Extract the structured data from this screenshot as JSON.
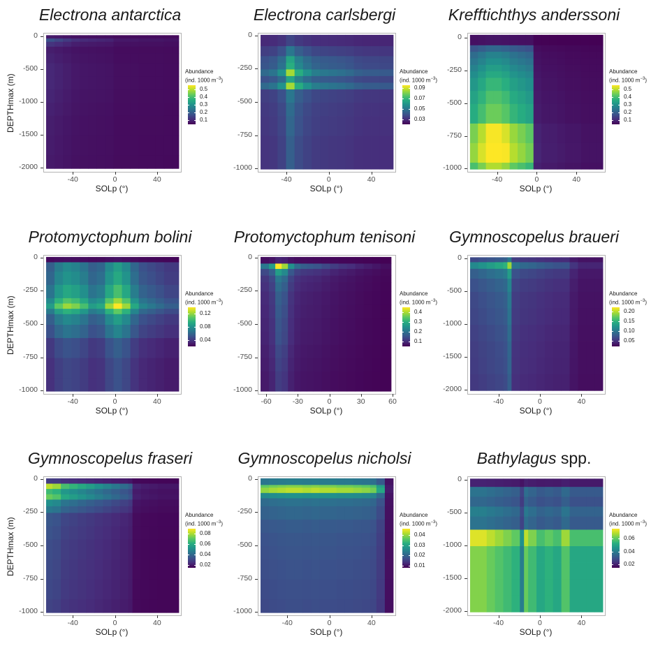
{
  "colors": {
    "viridis": [
      "#440154",
      "#472d7b",
      "#3b528b",
      "#2c728e",
      "#21918c",
      "#28ae80",
      "#5ec962",
      "#addc30",
      "#fde725"
    ],
    "frame": "#b3b3b3"
  },
  "labels": {
    "xlabel": "SOLp (°)",
    "ylabel": "DEPTHmax (m)",
    "legend_line1": "Abundance",
    "legend_line2_prefix": "(ind. 1000 m",
    "legend_sup": "−3",
    "legend_line2_suffix": ")"
  },
  "chart_data": [
    {
      "type": "heatmap",
      "title": "Electrona antarctica",
      "xlabel": "SOLp (°)",
      "ylabel": "DEPTHmax (m)",
      "x_ticks": [
        -40,
        0,
        40
      ],
      "y_ticks": [
        0,
        -500,
        -1000,
        -1500,
        -2000
      ],
      "xlim": [
        -68,
        62
      ],
      "ylim": [
        -2050,
        50
      ],
      "x_extent": [
        -66,
        60
      ],
      "y_extent": [
        -2000,
        25
      ],
      "legend_title": "Abundance (ind. 1000 m−3)",
      "legend_ticks": [
        0.1,
        0.2,
        0.3,
        0.4,
        0.5
      ],
      "legend_range": [
        0.05,
        0.55
      ],
      "x_bins": [
        -66,
        -58,
        -50,
        -42,
        -34,
        -26,
        -18,
        -10,
        -2,
        6,
        14,
        22,
        30,
        38,
        46,
        54,
        60
      ],
      "y_bins": [
        25,
        -25,
        -75,
        -150,
        -250,
        -400,
        -600,
        -800,
        -1000,
        -1200,
        -1500,
        -1800,
        -2000
      ],
      "x_weights": [
        0.3,
        0.25,
        0.2,
        0.15,
        0.13,
        0.12,
        0.11,
        0.1,
        0.06,
        0.06,
        0.06,
        0.05,
        0.05,
        0.05,
        0.04,
        0.04
      ],
      "y_weights": [
        0.1,
        0.45,
        0.25,
        0.12,
        0.15,
        0.18,
        0.18,
        0.16,
        0.14,
        0.12,
        0.11,
        0.1
      ],
      "base": 0.06,
      "scale": 0.85
    },
    {
      "type": "heatmap",
      "title": "Electrona carlsbergi",
      "xlabel": "SOLp (°)",
      "ylabel": "",
      "x_ticks": [
        -40,
        0,
        40
      ],
      "y_ticks": [
        0,
        -250,
        -500,
        -750,
        -1000
      ],
      "xlim": [
        -67,
        62
      ],
      "ylim": [
        -1020,
        20
      ],
      "x_extent": [
        -65,
        60
      ],
      "y_extent": [
        -1000,
        10
      ],
      "legend_title": "Abundance (ind. 1000 m−3)",
      "legend_ticks": [
        0.03,
        0.05,
        0.07,
        0.09
      ],
      "legend_range": [
        0.02,
        0.095
      ],
      "x_bins": [
        -65,
        -57,
        -49,
        -41,
        -33,
        -25,
        -17,
        -9,
        -1,
        7,
        15,
        23,
        31,
        39,
        47,
        55,
        60
      ],
      "y_bins": [
        10,
        -75,
        -150,
        -200,
        -250,
        -300,
        -350,
        -400,
        -500,
        -600,
        -750,
        -900,
        -1000
      ],
      "x_weights": [
        0.35,
        0.4,
        0.55,
        1.0,
        0.7,
        0.55,
        0.45,
        0.42,
        0.4,
        0.38,
        0.35,
        0.3,
        0.28,
        0.28,
        0.27,
        0.27
      ],
      "y_weights": [
        0.15,
        0.35,
        0.55,
        0.6,
        0.85,
        0.55,
        0.85,
        0.35,
        0.3,
        0.28,
        0.25,
        0.25
      ],
      "base": 0.025,
      "scale": 0.07
    },
    {
      "type": "heatmap",
      "title": "Krefftichthys anderssoni",
      "xlabel": "SOLp (°)",
      "ylabel": "",
      "x_ticks": [
        -40,
        0,
        40
      ],
      "y_ticks": [
        0,
        -250,
        -500,
        -750,
        -1000
      ],
      "xlim": [
        -70,
        68
      ],
      "ylim": [
        -1020,
        40
      ],
      "x_extent": [
        -68,
        66
      ],
      "y_extent": [
        -1000,
        30
      ],
      "legend_title": "Abundance (ind. 1000 m−3)",
      "legend_ticks": [
        0.1,
        0.2,
        0.3,
        0.4,
        0.5
      ],
      "legend_range": [
        0.05,
        0.55
      ],
      "x_bins": [
        -68,
        -60,
        -52,
        -44,
        -36,
        -28,
        -20,
        -12,
        -4,
        4,
        12,
        20,
        28,
        36,
        44,
        52,
        60,
        66
      ],
      "y_bins": [
        30,
        -50,
        -100,
        -150,
        -200,
        -250,
        -300,
        -400,
        -500,
        -650,
        -800,
        -950,
        -1000
      ],
      "x_weights": [
        0.8,
        0.9,
        1.0,
        1.0,
        0.95,
        0.85,
        0.8,
        0.75,
        0.1,
        0.08,
        0.08,
        0.07,
        0.06,
        0.06,
        0.05,
        0.05,
        0.05
      ],
      "y_weights": [
        0.05,
        0.3,
        0.4,
        0.45,
        0.5,
        0.55,
        0.6,
        0.65,
        0.7,
        0.9,
        0.95,
        0.8
      ],
      "base": 0.05,
      "scale": 0.55
    },
    {
      "type": "heatmap",
      "title": "Protomyctophum bolini",
      "xlabel": "SOLp (°)",
      "ylabel": "DEPTHmax (m)",
      "x_ticks": [
        -40,
        0,
        40
      ],
      "y_ticks": [
        0,
        -250,
        -500,
        -750,
        -1000
      ],
      "xlim": [
        -68,
        62
      ],
      "ylim": [
        -1020,
        20
      ],
      "x_extent": [
        -66,
        60
      ],
      "y_extent": [
        -1000,
        10
      ],
      "legend_title": "Abundance (ind. 1000 m−3)",
      "legend_ticks": [
        0.04,
        0.08,
        0.12
      ],
      "legend_range": [
        0.02,
        0.14
      ],
      "x_bins": [
        -66,
        -58,
        -50,
        -42,
        -34,
        -26,
        -18,
        -10,
        -2,
        6,
        14,
        22,
        30,
        38,
        46,
        54,
        60
      ],
      "y_bins": [
        10,
        -30,
        -100,
        -200,
        -300,
        -340,
        -380,
        -420,
        -500,
        -600,
        -750,
        -900,
        -1000
      ],
      "x_weights": [
        0.55,
        0.75,
        0.85,
        0.8,
        0.7,
        0.55,
        0.6,
        0.85,
        1.0,
        0.85,
        0.6,
        0.45,
        0.4,
        0.35,
        0.3,
        0.3
      ],
      "y_weights": [
        0.05,
        0.55,
        0.6,
        0.7,
        0.85,
        1.0,
        0.75,
        0.55,
        0.45,
        0.3,
        0.25,
        0.25
      ],
      "base": 0.02,
      "scale": 0.12
    },
    {
      "type": "heatmap",
      "title": "Protomyctophum tenisoni",
      "xlabel": "SOLp (°)",
      "ylabel": "",
      "x_ticks": [
        -60,
        -30,
        0,
        30,
        60
      ],
      "y_ticks": [
        0,
        -250,
        -500,
        -750,
        -1000
      ],
      "xlim": [
        -68,
        62
      ],
      "ylim": [
        -1020,
        20
      ],
      "x_extent": [
        -66,
        58
      ],
      "y_extent": [
        -1000,
        10
      ],
      "legend_title": "Abundance (ind. 1000 m−3)",
      "legend_ticks": [
        0.1,
        0.2,
        0.3,
        0.4
      ],
      "legend_range": [
        0.05,
        0.45
      ],
      "x_bins": [
        -66,
        -58,
        -52,
        -46,
        -40,
        -34,
        -28,
        -22,
        -16,
        -8,
        0,
        8,
        16,
        24,
        32,
        40,
        48,
        58
      ],
      "y_bins": [
        10,
        -40,
        -80,
        -130,
        -180,
        -250,
        -350,
        -450,
        -550,
        -650,
        -750,
        -850,
        -1000
      ],
      "x_weights": [
        0.4,
        0.55,
        1.0,
        0.85,
        0.5,
        0.35,
        0.3,
        0.28,
        0.26,
        0.22,
        0.18,
        0.15,
        0.13,
        0.1,
        0.08,
        0.06,
        0.04
      ],
      "y_weights": [
        0.1,
        1.0,
        0.55,
        0.4,
        0.35,
        0.3,
        0.28,
        0.26,
        0.25,
        0.22,
        0.2,
        0.18
      ],
      "base": 0.05,
      "scale": 0.4
    },
    {
      "type": "heatmap",
      "title": "Gymnoscopelus braueri",
      "xlabel": "SOLp (°)",
      "ylabel": "",
      "x_ticks": [
        -40,
        0,
        40
      ],
      "y_ticks": [
        0,
        -500,
        -1000,
        -1500,
        -2000
      ],
      "xlim": [
        -70,
        62
      ],
      "ylim": [
        -2050,
        50
      ],
      "x_extent": [
        -68,
        60
      ],
      "y_extent": [
        -2000,
        25
      ],
      "legend_title": "Abundance (ind. 1000 m−3)",
      "legend_ticks": [
        0.05,
        0.1,
        0.15,
        0.2
      ],
      "legend_range": [
        0.02,
        0.22
      ],
      "x_bins": [
        -68,
        -60,
        -52,
        -44,
        -36,
        -32,
        -28,
        -20,
        -12,
        -4,
        4,
        12,
        20,
        28,
        36,
        44,
        52,
        60
      ],
      "y_bins": [
        25,
        -50,
        -150,
        -300,
        -500,
        -750,
        -1000,
        -1250,
        -1500,
        -1750,
        -2000
      ],
      "x_weights": [
        0.55,
        0.6,
        0.65,
        0.7,
        0.75,
        1.0,
        0.45,
        0.4,
        0.38,
        0.35,
        0.32,
        0.3,
        0.3,
        0.18,
        0.12,
        0.12,
        0.12
      ],
      "y_weights": [
        0.4,
        0.85,
        0.55,
        0.45,
        0.4,
        0.38,
        0.35,
        0.33,
        0.32,
        0.3
      ],
      "base": 0.02,
      "scale": 0.2
    },
    {
      "type": "heatmap",
      "title": "Gymnoscopelus fraseri",
      "xlabel": "SOLp (°)",
      "ylabel": "DEPTHmax (m)",
      "x_ticks": [
        -40,
        0,
        40
      ],
      "y_ticks": [
        0,
        -250,
        -500,
        -750,
        -1000
      ],
      "xlim": [
        -68,
        62
      ],
      "ylim": [
        -1020,
        20
      ],
      "x_extent": [
        -66,
        60
      ],
      "y_extent": [
        -1000,
        10
      ],
      "legend_title": "Abundance (ind. 1000 m−3)",
      "legend_ticks": [
        0.02,
        0.04,
        0.06,
        0.08
      ],
      "legend_range": [
        0.015,
        0.09
      ],
      "x_bins": [
        -66,
        -60,
        -52,
        -44,
        -36,
        -28,
        -20,
        -12,
        -4,
        4,
        12,
        16,
        24,
        32,
        40,
        48,
        56,
        60
      ],
      "y_bins": [
        10,
        -30,
        -70,
        -110,
        -150,
        -200,
        -250,
        -350,
        -450,
        -600,
        -750,
        -900,
        -1000
      ],
      "x_weights": [
        0.9,
        0.85,
        0.7,
        0.65,
        0.6,
        0.55,
        0.5,
        0.45,
        0.4,
        0.35,
        0.3,
        0.1,
        0.08,
        0.07,
        0.06,
        0.06,
        0.06
      ],
      "y_weights": [
        0.2,
        1.0,
        0.75,
        0.85,
        0.55,
        0.45,
        0.3,
        0.28,
        0.26,
        0.25,
        0.24,
        0.22
      ],
      "base": 0.015,
      "scale": 0.075
    },
    {
      "type": "heatmap",
      "title": "Gymnoscopelus nicholsi",
      "xlabel": "SOLp (°)",
      "ylabel": "",
      "x_ticks": [
        -40,
        0,
        40
      ],
      "y_ticks": [
        0,
        -250,
        -500,
        -750,
        -1000
      ],
      "xlim": [
        -68,
        62
      ],
      "ylim": [
        -1020,
        20
      ],
      "x_extent": [
        -66,
        60
      ],
      "y_extent": [
        -1000,
        10
      ],
      "legend_title": "Abundance (ind. 1000 m−3)",
      "legend_ticks": [
        0.01,
        0.02,
        0.03,
        0.04
      ],
      "legend_range": [
        0.008,
        0.046
      ],
      "x_bins": [
        -66,
        -58,
        -50,
        -42,
        -34,
        -26,
        -18,
        -10,
        -2,
        6,
        14,
        22,
        30,
        38,
        44,
        52,
        60
      ],
      "y_bins": [
        10,
        -40,
        -60,
        -100,
        -140,
        -200,
        -300,
        -400,
        -500,
        -600,
        -750,
        -900,
        -1000
      ],
      "x_weights": [
        0.85,
        0.88,
        0.9,
        0.92,
        0.92,
        0.9,
        0.92,
        0.9,
        0.9,
        0.88,
        0.88,
        0.86,
        0.84,
        0.8,
        0.6,
        0.05
      ],
      "y_weights": [
        0.45,
        0.9,
        1.0,
        0.55,
        0.4,
        0.35,
        0.3,
        0.28,
        0.27,
        0.26,
        0.25,
        0.24
      ],
      "base": 0.009,
      "scale": 0.036
    },
    {
      "type": "heatmap",
      "title": "Bathylagus",
      "title_suffix": "spp.",
      "xlabel": "SOLp (°)",
      "ylabel": "",
      "x_ticks": [
        -40,
        0,
        40
      ],
      "y_ticks": [
        0,
        -500,
        -1000,
        -1500,
        -2000
      ],
      "xlim": [
        -70,
        62
      ],
      "ylim": [
        -2050,
        50
      ],
      "x_extent": [
        -68,
        60
      ],
      "y_extent": [
        -2000,
        25
      ],
      "legend_title": "Abundance (ind. 1000 m−3)",
      "legend_ticks": [
        0.02,
        0.04,
        0.06
      ],
      "legend_range": [
        0.015,
        0.075
      ],
      "x_bins": [
        -68,
        -60,
        -52,
        -44,
        -36,
        -28,
        -20,
        -16,
        -12,
        -4,
        4,
        12,
        20,
        28,
        36,
        44,
        52,
        60
      ],
      "y_bins": [
        25,
        -100,
        -250,
        -400,
        -550,
        -750,
        -1000,
        -1250,
        -1500,
        -1750,
        -2000
      ],
      "x_weights": [
        0.95,
        0.95,
        0.9,
        0.85,
        0.8,
        0.75,
        0.5,
        0.9,
        0.8,
        0.7,
        0.75,
        0.7,
        0.85,
        0.7,
        0.7,
        0.7,
        0.7
      ],
      "y_weights": [
        0.1,
        0.4,
        0.35,
        0.45,
        0.4,
        1.0,
        0.85,
        0.85,
        0.85,
        0.85
      ],
      "base": 0.015,
      "scale": 0.06
    }
  ]
}
